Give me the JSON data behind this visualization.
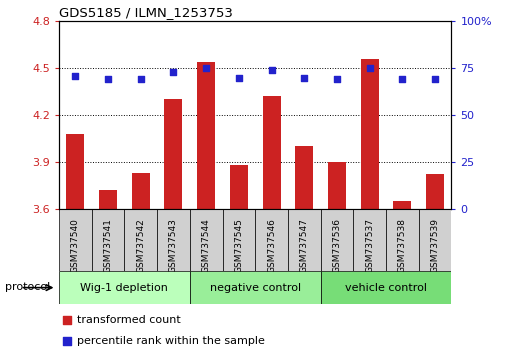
{
  "title": "GDS5185 / ILMN_1253753",
  "samples": [
    "GSM737540",
    "GSM737541",
    "GSM737542",
    "GSM737543",
    "GSM737544",
    "GSM737545",
    "GSM737546",
    "GSM737547",
    "GSM737536",
    "GSM737537",
    "GSM737538",
    "GSM737539"
  ],
  "bar_values": [
    4.08,
    3.72,
    3.83,
    4.3,
    4.54,
    3.88,
    4.32,
    4.0,
    3.9,
    4.56,
    3.65,
    3.82
  ],
  "percentile_values": [
    71,
    69,
    69,
    73,
    75,
    70,
    74,
    70,
    69,
    75,
    69,
    69
  ],
  "ylim_left": [
    3.6,
    4.8
  ],
  "ylim_right": [
    0,
    100
  ],
  "yticks_left": [
    3.6,
    3.9,
    4.2,
    4.5,
    4.8
  ],
  "yticks_right": [
    0,
    25,
    50,
    75,
    100
  ],
  "ytick_right_labels": [
    "0",
    "25",
    "50",
    "75",
    "100%"
  ],
  "bar_color": "#cc2222",
  "dot_color": "#2222cc",
  "groups": [
    {
      "label": "Wig-1 depletion",
      "start": 0,
      "end": 4,
      "color": "#bbffbb"
    },
    {
      "label": "negative control",
      "start": 4,
      "end": 8,
      "color": "#99ee99"
    },
    {
      "label": "vehicle control",
      "start": 8,
      "end": 12,
      "color": "#77dd77"
    }
  ],
  "protocol_label": "protocol",
  "legend_red": "transformed count",
  "legend_blue": "percentile rank within the sample",
  "sample_box_color": "#d0d0d0",
  "n": 12
}
